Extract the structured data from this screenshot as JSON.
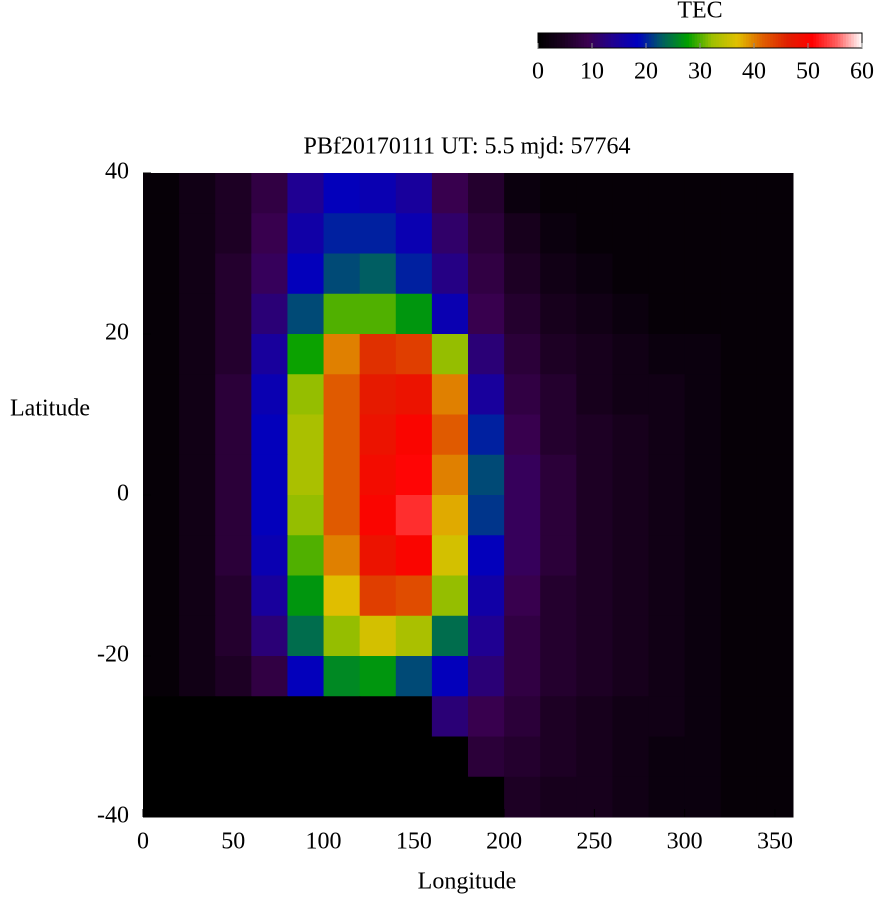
{
  "chart_data": {
    "type": "heatmap",
    "title": "PBf20170111  UT: 5.5  mjd: 57764",
    "xlabel": "Longitude",
    "ylabel": "Latitude",
    "colorbar_label": "TEC",
    "x": [
      10,
      30,
      50,
      70,
      90,
      110,
      130,
      150,
      170,
      190,
      210,
      230,
      250,
      270,
      290,
      310,
      330,
      350
    ],
    "y": [
      37.5,
      32.5,
      27.5,
      22.5,
      17.5,
      12.5,
      7.5,
      2.5,
      -2.5,
      -7.5,
      -12.5,
      -17.5,
      -22.5,
      -27.5,
      -32.5,
      -37.5
    ],
    "values": [
      [
        1,
        3,
        5,
        8,
        14,
        18,
        17,
        15,
        9,
        6,
        2,
        1,
        1,
        1,
        1,
        1,
        1,
        1
      ],
      [
        1,
        3,
        5,
        9,
        16,
        20,
        20,
        17,
        11,
        7,
        4,
        2,
        1,
        1,
        1,
        1,
        1,
        1
      ],
      [
        1,
        3,
        6,
        10,
        18,
        22,
        23,
        20,
        13,
        8,
        5,
        3,
        2,
        1,
        1,
        1,
        1,
        1
      ],
      [
        1,
        3,
        6,
        12,
        22,
        30,
        30,
        27,
        17,
        9,
        6,
        4,
        3,
        2,
        1,
        1,
        1,
        1
      ],
      [
        1,
        3,
        6,
        15,
        28,
        40,
        45,
        44,
        32,
        12,
        7,
        5,
        4,
        3,
        2,
        2,
        1,
        1
      ],
      [
        1,
        3,
        7,
        17,
        32,
        42,
        47,
        48,
        40,
        15,
        8,
        6,
        4,
        3,
        3,
        2,
        1,
        1
      ],
      [
        1,
        3,
        7,
        18,
        33,
        42,
        48,
        50,
        42,
        20,
        9,
        6,
        5,
        4,
        3,
        2,
        1,
        1
      ],
      [
        1,
        3,
        7,
        18,
        33,
        42,
        49,
        51,
        40,
        22,
        10,
        7,
        5,
        4,
        3,
        2,
        1,
        1
      ],
      [
        1,
        3,
        7,
        18,
        32,
        42,
        50,
        53,
        38,
        21,
        10,
        7,
        5,
        4,
        3,
        2,
        1,
        1
      ],
      [
        1,
        3,
        7,
        17,
        30,
        40,
        48,
        50,
        36,
        18,
        10,
        7,
        5,
        4,
        3,
        2,
        1,
        1
      ],
      [
        1,
        3,
        6,
        15,
        27,
        37,
        44,
        43,
        32,
        16,
        9,
        6,
        5,
        4,
        3,
        2,
        1,
        1
      ],
      [
        1,
        3,
        6,
        12,
        24,
        32,
        36,
        33,
        24,
        14,
        8,
        6,
        5,
        4,
        3,
        2,
        1,
        1
      ],
      [
        1,
        3,
        5,
        8,
        18,
        26,
        27,
        22,
        18,
        12,
        8,
        6,
        5,
        4,
        3,
        2,
        1,
        1
      ],
      [
        0,
        0,
        0,
        0,
        0,
        0,
        0,
        0,
        12,
        9,
        7,
        5,
        4,
        3,
        3,
        2,
        1,
        1
      ],
      [
        0,
        0,
        0,
        0,
        0,
        0,
        0,
        0,
        0,
        7,
        6,
        5,
        4,
        3,
        2,
        2,
        1,
        1
      ],
      [
        0,
        0,
        0,
        0,
        0,
        0,
        0,
        0,
        0,
        0,
        5,
        4,
        4,
        3,
        2,
        2,
        1,
        1
      ]
    ],
    "xlim": [
      0,
      360
    ],
    "xticks": [
      0,
      50,
      100,
      150,
      200,
      250,
      300,
      350
    ],
    "ylim": [
      -40,
      40
    ],
    "yticks": [
      -40,
      -20,
      0,
      20,
      40
    ],
    "zlim": [
      0,
      60
    ],
    "zticks": [
      0,
      10,
      20,
      30,
      40,
      50,
      60
    ],
    "colormap": [
      "#000000",
      "#1a0020",
      "#3a0050",
      "#200090",
      "#0000c0",
      "#006060",
      "#00a000",
      "#a0c000",
      "#e0c000",
      "#e06000",
      "#e02000",
      "#ff0000",
      "#ff6060",
      "#ffffff"
    ]
  }
}
